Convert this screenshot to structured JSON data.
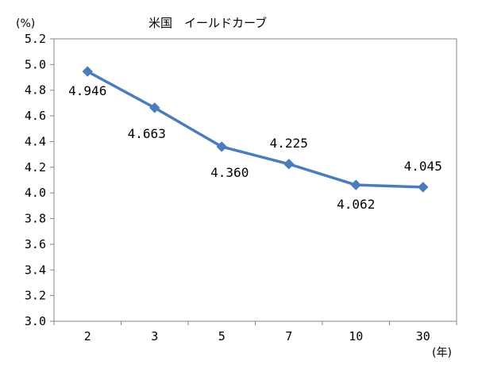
{
  "chart_data": {
    "type": "line",
    "title": "米国　イールドカーブ",
    "y_unit": "(%)",
    "x_unit": "(年)",
    "categories": [
      "2",
      "3",
      "5",
      "7",
      "10",
      "30"
    ],
    "series": [
      {
        "values": [
          4.946,
          4.663,
          4.36,
          4.225,
          4.062,
          4.045
        ],
        "labels": [
          "4.946",
          "4.663",
          "4.360",
          "4.225",
          "4.062",
          "4.045"
        ],
        "label_side": [
          "below",
          "below-left",
          "below-right",
          "above",
          "below",
          "above"
        ],
        "color": "#4a7ebb"
      }
    ],
    "ylim": [
      3.0,
      5.2
    ],
    "yticks": [
      "3.0",
      "3.2",
      "3.4",
      "3.6",
      "3.8",
      "4.0",
      "4.2",
      "4.4",
      "4.6",
      "4.8",
      "5.0",
      "5.2"
    ],
    "grid": false,
    "legend": "none"
  }
}
